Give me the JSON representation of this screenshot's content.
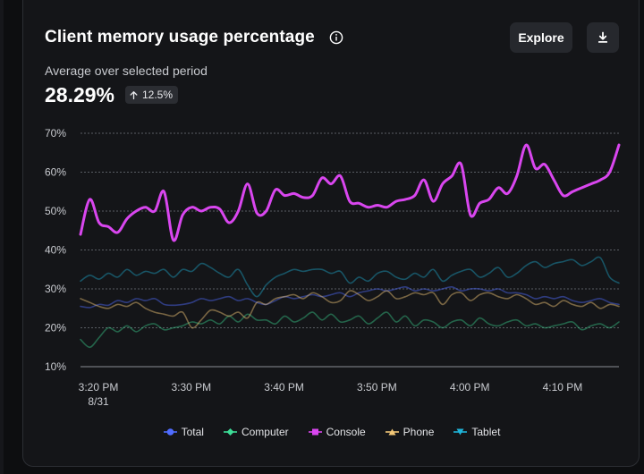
{
  "card": {
    "title": "Client memory usage percentage",
    "explore_label": "Explore",
    "subtitle": "Average over selected period",
    "summary_value": "28.29%",
    "change_value": "12.5%",
    "change_direction": "up"
  },
  "chart_data": {
    "type": "line",
    "title": "Client memory usage percentage",
    "xlabel": "",
    "ylabel": "",
    "ylim": [
      10,
      70
    ],
    "yticks": [
      "10%",
      "20%",
      "30%",
      "40%",
      "50%",
      "60%",
      "70%"
    ],
    "xticks": [
      {
        "label": "3:20 PM",
        "sublabel": "8/31"
      },
      {
        "label": "3:30 PM",
        "sublabel": ""
      },
      {
        "label": "3:40 PM",
        "sublabel": ""
      },
      {
        "label": "3:50 PM",
        "sublabel": ""
      },
      {
        "label": "4:00 PM",
        "sublabel": ""
      },
      {
        "label": "4:10 PM",
        "sublabel": ""
      }
    ],
    "grid": true,
    "legend_position": "bottom",
    "x": [
      "3:20",
      "3:21",
      "3:22",
      "3:23",
      "3:24",
      "3:25",
      "3:26",
      "3:27",
      "3:28",
      "3:29",
      "3:30",
      "3:31",
      "3:32",
      "3:33",
      "3:34",
      "3:35",
      "3:36",
      "3:37",
      "3:38",
      "3:39",
      "3:40",
      "3:41",
      "3:42",
      "3:43",
      "3:44",
      "3:45",
      "3:46",
      "3:47",
      "3:48",
      "3:49",
      "3:50",
      "3:51",
      "3:52",
      "3:53",
      "3:54",
      "3:55",
      "3:56",
      "3:57",
      "3:58",
      "3:59",
      "4:00",
      "4:01",
      "4:02",
      "4:03",
      "4:04",
      "4:05",
      "4:06",
      "4:07",
      "4:08",
      "4:09",
      "4:10",
      "4:11",
      "4:12",
      "4:13",
      "4:14",
      "4:15",
      "4:16",
      "4:17",
      "4:18"
    ],
    "series": [
      {
        "name": "Total",
        "color": "#4f6cff",
        "opacity": 0.45,
        "values": [
          25.5,
          25.2,
          26,
          25.8,
          27,
          26.5,
          27.5,
          27,
          27.5,
          26,
          25.8,
          26,
          26.5,
          27.5,
          27,
          27.5,
          28,
          27,
          27.5,
          26.5,
          26,
          27,
          28,
          27.5,
          28,
          28.5,
          28,
          28.5,
          29,
          28,
          29,
          29.5,
          30,
          29.5,
          30,
          30.5,
          29.5,
          30,
          29.5,
          30,
          30.5,
          29.5,
          30,
          30,
          29.5,
          30,
          29,
          29,
          28.5,
          27.5,
          28,
          27.5,
          28,
          27,
          26.5,
          27,
          27.5,
          26.5,
          26
        ]
      },
      {
        "name": "Computer",
        "color": "#3ddc97",
        "opacity": 0.4,
        "values": [
          17,
          15,
          17.5,
          20,
          19,
          20.5,
          19,
          20.5,
          21,
          19.5,
          20,
          20.5,
          21.5,
          21,
          22,
          21,
          23,
          21.5,
          23.5,
          22,
          22,
          21,
          23,
          21.5,
          22.5,
          24,
          22,
          23.5,
          21.5,
          22,
          23,
          21,
          22.5,
          24,
          21.5,
          23,
          20.5,
          22,
          21.5,
          20,
          21.5,
          22,
          20.5,
          22.5,
          21,
          20.5,
          21.5,
          22,
          20.5,
          21,
          20,
          20.5,
          21,
          21.5,
          19.5,
          20.5,
          21,
          20,
          21.5
        ]
      },
      {
        "name": "Console",
        "color": "#d946ef",
        "opacity": 1,
        "values": [
          44,
          53,
          47,
          46,
          44.5,
          48,
          50,
          51,
          50,
          55,
          42.5,
          49,
          51,
          50,
          51,
          50.5,
          47,
          50,
          57,
          49.5,
          50,
          55.5,
          54,
          54.5,
          53.5,
          54,
          58.5,
          57,
          59,
          52.5,
          52,
          51,
          51.5,
          51,
          52.5,
          53,
          54,
          58,
          52.5,
          57,
          59,
          62,
          49,
          52,
          53,
          56,
          54.5,
          59,
          67,
          61,
          62,
          58,
          54,
          55,
          56,
          57,
          58,
          60,
          67
        ]
      },
      {
        "name": "Phone",
        "color": "#f2c777",
        "opacity": 0.45,
        "values": [
          27.5,
          26.5,
          25.5,
          25,
          26,
          25.5,
          26.5,
          25,
          24,
          23.5,
          23,
          24,
          20,
          22,
          24.5,
          24,
          23,
          24,
          22.5,
          26.5,
          26,
          27.5,
          28,
          28.5,
          27.5,
          29,
          28,
          26.5,
          27,
          29.5,
          28.5,
          27,
          28,
          29.5,
          27.5,
          28,
          29,
          28.5,
          29,
          26,
          28.5,
          29,
          27,
          28.5,
          29,
          28,
          27.5,
          28.5,
          27.5,
          26,
          26.5,
          25.5,
          27,
          26,
          25.5,
          26.5,
          25,
          26,
          25.5
        ]
      },
      {
        "name": "Tablet",
        "color": "#1fb4d9",
        "opacity": 0.4,
        "values": [
          32,
          33.5,
          32.5,
          34,
          33,
          35,
          33.5,
          34.5,
          34,
          35,
          33,
          35,
          34.5,
          36.5,
          35.5,
          34,
          33,
          35,
          31,
          28,
          31,
          33,
          34,
          35,
          34.5,
          35,
          35,
          34,
          34.5,
          31.5,
          33,
          32,
          34,
          34.5,
          33,
          32.5,
          34,
          33,
          35,
          32,
          33.5,
          34.5,
          35,
          33,
          34,
          35.5,
          33,
          34,
          36,
          37,
          35.5,
          36.5,
          37,
          37.5,
          36,
          37,
          38,
          33,
          31.5
        ]
      }
    ]
  }
}
